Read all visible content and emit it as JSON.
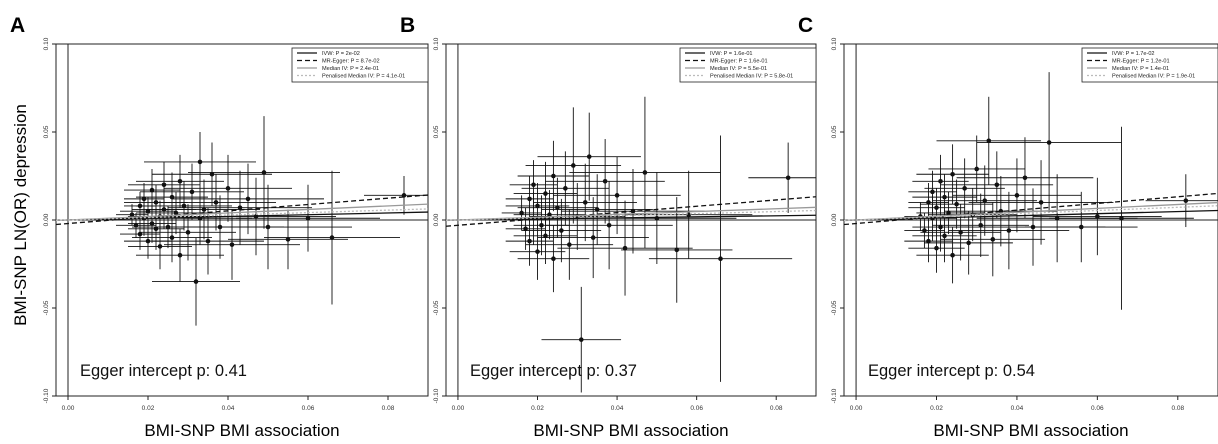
{
  "figure": {
    "ylabel": "BMI-SNP LN(OR) depression",
    "xlabel": "BMI-SNP BMI association"
  },
  "chart_data": [
    {
      "type": "scatter",
      "panel": "A",
      "xlim": [
        -0.003,
        0.09
      ],
      "ylim": [
        -0.1,
        0.1
      ],
      "xticks": [
        "0.00",
        "0.02",
        "0.04",
        "0.06",
        "0.08"
      ],
      "yticks": [
        "-0.10",
        "-0.05",
        "0.00",
        "0.05",
        "0.10"
      ],
      "legend_position": "top-right",
      "legend": [
        "IVW: P = 2e-02",
        "MR-Egger: P = 8.7e-02",
        "Median IV: P = 2.4e-01",
        "Penalised Median IV: P = 4.1e-01"
      ],
      "annotation": "Egger intercept p: 0.41",
      "lines": [
        {
          "name": "IVW: P = 2e-02",
          "style": "solid",
          "color": "#111111",
          "intercept": 0,
          "slope": 0.05
        },
        {
          "name": "MR-Egger: P = 8.7e-02",
          "style": "dashed",
          "color": "#111111",
          "intercept": -0.002,
          "slope": 0.18
        },
        {
          "name": "Median IV: P = 2.4e-01",
          "style": "solid",
          "color": "#999999",
          "intercept": 0,
          "slope": 0.1
        },
        {
          "name": "Penalised Median IV: P = 4.1e-01",
          "style": "dotted",
          "color": "#bbbbbb",
          "intercept": 0,
          "slope": 0.07
        }
      ],
      "points": [
        {
          "x": 0.016,
          "y": 0.003,
          "xe": 0.004,
          "ye": 0.006
        },
        {
          "x": 0.017,
          "y": -0.003,
          "xe": 0.005,
          "ye": 0.007
        },
        {
          "x": 0.018,
          "y": 0.008,
          "xe": 0.004,
          "ye": 0.008
        },
        {
          "x": 0.018,
          "y": -0.008,
          "xe": 0.005,
          "ye": 0.009
        },
        {
          "x": 0.019,
          "y": 0.001,
          "xe": 0.006,
          "ye": 0.01
        },
        {
          "x": 0.019,
          "y": 0.012,
          "xe": 0.005,
          "ye": 0.009
        },
        {
          "x": 0.02,
          "y": -0.012,
          "xe": 0.006,
          "ye": 0.01
        },
        {
          "x": 0.02,
          "y": 0.005,
          "xe": 0.007,
          "ye": 0.008
        },
        {
          "x": 0.021,
          "y": -0.002,
          "xe": 0.006,
          "ye": 0.011
        },
        {
          "x": 0.021,
          "y": 0.017,
          "xe": 0.007,
          "ye": 0.012
        },
        {
          "x": 0.022,
          "y": 0.01,
          "xe": 0.008,
          "ye": 0.01
        },
        {
          "x": 0.022,
          "y": -0.005,
          "xe": 0.007,
          "ye": 0.012
        },
        {
          "x": 0.023,
          "y": 0.002,
          "xe": 0.008,
          "ye": 0.009
        },
        {
          "x": 0.023,
          "y": -0.015,
          "xe": 0.008,
          "ye": 0.013
        },
        {
          "x": 0.024,
          "y": 0.02,
          "xe": 0.009,
          "ye": 0.013
        },
        {
          "x": 0.024,
          "y": 0.006,
          "xe": 0.008,
          "ye": 0.011
        },
        {
          "x": 0.025,
          "y": -0.004,
          "xe": 0.009,
          "ye": 0.012
        },
        {
          "x": 0.026,
          "y": 0.013,
          "xe": 0.009,
          "ye": 0.014
        },
        {
          "x": 0.026,
          "y": -0.01,
          "xe": 0.01,
          "ye": 0.014
        },
        {
          "x": 0.027,
          "y": 0.004,
          "xe": 0.01,
          "ye": 0.012
        },
        {
          "x": 0.028,
          "y": -0.02,
          "xe": 0.011,
          "ye": 0.015
        },
        {
          "x": 0.028,
          "y": 0.022,
          "xe": 0.011,
          "ye": 0.015
        },
        {
          "x": 0.029,
          "y": 0.008,
          "xe": 0.012,
          "ye": 0.014
        },
        {
          "x": 0.03,
          "y": -0.007,
          "xe": 0.012,
          "ye": 0.016
        },
        {
          "x": 0.031,
          "y": 0.016,
          "xe": 0.013,
          "ye": 0.016
        },
        {
          "x": 0.032,
          "y": -0.035,
          "xe": 0.011,
          "ye": 0.025
        },
        {
          "x": 0.033,
          "y": 0.033,
          "xe": 0.014,
          "ye": 0.017
        },
        {
          "x": 0.033,
          "y": 0.001,
          "xe": 0.013,
          "ye": 0.015
        },
        {
          "x": 0.034,
          "y": 0.006,
          "xe": 0.014,
          "ye": 0.017
        },
        {
          "x": 0.035,
          "y": -0.012,
          "xe": 0.014,
          "ye": 0.019
        },
        {
          "x": 0.036,
          "y": 0.026,
          "xe": 0.015,
          "ye": 0.018
        },
        {
          "x": 0.037,
          "y": 0.01,
          "xe": 0.015,
          "ye": 0.016
        },
        {
          "x": 0.038,
          "y": -0.004,
          "xe": 0.016,
          "ye": 0.018
        },
        {
          "x": 0.04,
          "y": 0.018,
          "xe": 0.016,
          "ye": 0.019
        },
        {
          "x": 0.041,
          "y": -0.014,
          "xe": 0.017,
          "ye": 0.02
        },
        {
          "x": 0.043,
          "y": 0.007,
          "xe": 0.018,
          "ye": 0.021
        },
        {
          "x": 0.045,
          "y": 0.012,
          "xe": 0.019,
          "ye": 0.02
        },
        {
          "x": 0.047,
          "y": 0.002,
          "xe": 0.02,
          "ye": 0.022
        },
        {
          "x": 0.049,
          "y": 0.027,
          "xe": 0.019,
          "ye": 0.032
        },
        {
          "x": 0.05,
          "y": -0.004,
          "xe": 0.021,
          "ye": 0.024
        },
        {
          "x": 0.055,
          "y": -0.011,
          "xe": 0.015,
          "ye": 0.017
        },
        {
          "x": 0.06,
          "y": 0.001,
          "xe": 0.018,
          "ye": 0.019
        },
        {
          "x": 0.066,
          "y": -0.01,
          "xe": 0.017,
          "ye": 0.038
        },
        {
          "x": 0.084,
          "y": 0.014,
          "xe": 0.01,
          "ye": 0.011
        }
      ]
    },
    {
      "type": "scatter",
      "panel": "B",
      "xlim": [
        -0.003,
        0.09
      ],
      "ylim": [
        -0.1,
        0.1
      ],
      "xticks": [
        "0.00",
        "0.02",
        "0.04",
        "0.06",
        "0.08"
      ],
      "yticks": [
        "-0.10",
        "-0.05",
        "0.00",
        "0.05",
        "0.10"
      ],
      "legend_position": "top-right",
      "legend": [
        "IVW: P = 1.6e-01",
        "MR-Egger: P = 1.6e-01",
        "Median IV: P = 5.5e-01",
        "Penalised Median IV: P = 5.8e-01"
      ],
      "annotation": "Egger intercept p: 0.37",
      "lines": [
        {
          "name": "IVW: P = 1.6e-01",
          "style": "solid",
          "color": "#111111",
          "intercept": 0,
          "slope": 0.03
        },
        {
          "name": "MR-Egger: P = 1.6e-01",
          "style": "dashed",
          "color": "#111111",
          "intercept": -0.003,
          "slope": 0.18
        },
        {
          "name": "Median IV: P = 5.5e-01",
          "style": "solid",
          "color": "#999999",
          "intercept": 0,
          "slope": 0.08
        },
        {
          "name": "Penalised Median IV: P = 5.8e-01",
          "style": "dotted",
          "color": "#bbbbbb",
          "intercept": 0,
          "slope": 0.06
        }
      ],
      "points": [
        {
          "x": 0.016,
          "y": 0.004,
          "xe": 0.005,
          "ye": 0.01
        },
        {
          "x": 0.017,
          "y": -0.005,
          "xe": 0.005,
          "ye": 0.012
        },
        {
          "x": 0.018,
          "y": 0.012,
          "xe": 0.006,
          "ye": 0.013
        },
        {
          "x": 0.018,
          "y": -0.012,
          "xe": 0.006,
          "ye": 0.014
        },
        {
          "x": 0.019,
          "y": 0.001,
          "xe": 0.007,
          "ye": 0.015
        },
        {
          "x": 0.019,
          "y": 0.02,
          "xe": 0.006,
          "ye": 0.014
        },
        {
          "x": 0.02,
          "y": -0.018,
          "xe": 0.007,
          "ye": 0.016
        },
        {
          "x": 0.02,
          "y": 0.008,
          "xe": 0.008,
          "ye": 0.013
        },
        {
          "x": 0.021,
          "y": -0.003,
          "xe": 0.007,
          "ye": 0.017
        },
        {
          "x": 0.022,
          "y": 0.015,
          "xe": 0.008,
          "ye": 0.018
        },
        {
          "x": 0.022,
          "y": -0.009,
          "xe": 0.008,
          "ye": 0.016
        },
        {
          "x": 0.023,
          "y": 0.003,
          "xe": 0.009,
          "ye": 0.014
        },
        {
          "x": 0.024,
          "y": -0.022,
          "xe": 0.009,
          "ye": 0.019
        },
        {
          "x": 0.024,
          "y": 0.025,
          "xe": 0.009,
          "ye": 0.02
        },
        {
          "x": 0.025,
          "y": 0.007,
          "xe": 0.01,
          "ye": 0.017
        },
        {
          "x": 0.026,
          "y": -0.006,
          "xe": 0.01,
          "ye": 0.018
        },
        {
          "x": 0.027,
          "y": 0.018,
          "xe": 0.011,
          "ye": 0.021
        },
        {
          "x": 0.028,
          "y": -0.014,
          "xe": 0.011,
          "ye": 0.02
        },
        {
          "x": 0.029,
          "y": 0.031,
          "xe": 0.012,
          "ye": 0.033
        },
        {
          "x": 0.03,
          "y": 0.002,
          "xe": 0.012,
          "ye": 0.019
        },
        {
          "x": 0.031,
          "y": -0.068,
          "xe": 0.01,
          "ye": 0.03
        },
        {
          "x": 0.032,
          "y": 0.01,
          "xe": 0.013,
          "ye": 0.022
        },
        {
          "x": 0.033,
          "y": 0.036,
          "xe": 0.013,
          "ye": 0.025
        },
        {
          "x": 0.034,
          "y": -0.01,
          "xe": 0.014,
          "ye": 0.023
        },
        {
          "x": 0.035,
          "y": 0.006,
          "xe": 0.014,
          "ye": 0.02
        },
        {
          "x": 0.037,
          "y": 0.022,
          "xe": 0.015,
          "ye": 0.024
        },
        {
          "x": 0.038,
          "y": -0.003,
          "xe": 0.016,
          "ye": 0.025
        },
        {
          "x": 0.04,
          "y": 0.014,
          "xe": 0.016,
          "ye": 0.022
        },
        {
          "x": 0.042,
          "y": -0.016,
          "xe": 0.017,
          "ye": 0.027
        },
        {
          "x": 0.044,
          "y": 0.005,
          "xe": 0.018,
          "ye": 0.024
        },
        {
          "x": 0.047,
          "y": 0.027,
          "xe": 0.019,
          "ye": 0.043
        },
        {
          "x": 0.05,
          "y": 0.001,
          "xe": 0.02,
          "ye": 0.026
        },
        {
          "x": 0.055,
          "y": -0.017,
          "xe": 0.014,
          "ye": 0.03
        },
        {
          "x": 0.058,
          "y": 0.003,
          "xe": 0.016,
          "ye": 0.025
        },
        {
          "x": 0.066,
          "y": -0.022,
          "xe": 0.018,
          "ye": 0.07
        },
        {
          "x": 0.083,
          "y": 0.024,
          "xe": 0.01,
          "ye": 0.02
        }
      ]
    },
    {
      "type": "scatter",
      "panel": "C",
      "xlim": [
        -0.003,
        0.09
      ],
      "ylim": [
        -0.1,
        0.1
      ],
      "xticks": [
        "0.00",
        "0.02",
        "0.04",
        "0.06",
        "0.08"
      ],
      "yticks": [
        "-0.10",
        "-0.05",
        "0.00",
        "0.05",
        "0.10"
      ],
      "legend_position": "top-right",
      "legend": [
        "IVW: P = 1.7e-02",
        "MR-Egger: P = 1.2e-01",
        "Median IV: P = 1.4e-01",
        "Penalised Median IV: P = 1.9e-01"
      ],
      "annotation": "Egger intercept p: 0.54",
      "lines": [
        {
          "name": "IVW: P = 1.7e-02",
          "style": "solid",
          "color": "#111111",
          "intercept": 0,
          "slope": 0.06
        },
        {
          "name": "MR-Egger: P = 1.2e-01",
          "style": "dashed",
          "color": "#111111",
          "intercept": -0.002,
          "slope": 0.19
        },
        {
          "name": "Median IV: P = 1.4e-01",
          "style": "solid",
          "color": "#999999",
          "intercept": 0,
          "slope": 0.11
        },
        {
          "name": "Penalised Median IV: P = 1.9e-01",
          "style": "dotted",
          "color": "#bbbbbb",
          "intercept": 0,
          "slope": 0.09
        }
      ],
      "points": [
        {
          "x": 0.016,
          "y": 0.002,
          "xe": 0.004,
          "ye": 0.008
        },
        {
          "x": 0.017,
          "y": -0.006,
          "xe": 0.005,
          "ye": 0.01
        },
        {
          "x": 0.018,
          "y": 0.01,
          "xe": 0.005,
          "ye": 0.011
        },
        {
          "x": 0.018,
          "y": -0.012,
          "xe": 0.006,
          "ye": 0.012
        },
        {
          "x": 0.019,
          "y": 0.016,
          "xe": 0.006,
          "ye": 0.012
        },
        {
          "x": 0.019,
          "y": 0.001,
          "xe": 0.006,
          "ye": 0.013
        },
        {
          "x": 0.02,
          "y": -0.016,
          "xe": 0.007,
          "ye": 0.014
        },
        {
          "x": 0.02,
          "y": 0.007,
          "xe": 0.007,
          "ye": 0.011
        },
        {
          "x": 0.021,
          "y": 0.022,
          "xe": 0.007,
          "ye": 0.015
        },
        {
          "x": 0.021,
          "y": -0.004,
          "xe": 0.007,
          "ye": 0.014
        },
        {
          "x": 0.022,
          "y": 0.013,
          "xe": 0.008,
          "ye": 0.013
        },
        {
          "x": 0.022,
          "y": -0.009,
          "xe": 0.008,
          "ye": 0.015
        },
        {
          "x": 0.023,
          "y": 0.004,
          "xe": 0.008,
          "ye": 0.012
        },
        {
          "x": 0.024,
          "y": -0.02,
          "xe": 0.009,
          "ye": 0.016
        },
        {
          "x": 0.024,
          "y": 0.026,
          "xe": 0.009,
          "ye": 0.017
        },
        {
          "x": 0.025,
          "y": 0.009,
          "xe": 0.009,
          "ye": 0.014
        },
        {
          "x": 0.026,
          "y": -0.007,
          "xe": 0.01,
          "ye": 0.016
        },
        {
          "x": 0.027,
          "y": 0.018,
          "xe": 0.01,
          "ye": 0.017
        },
        {
          "x": 0.028,
          "y": -0.013,
          "xe": 0.011,
          "ye": 0.018
        },
        {
          "x": 0.029,
          "y": 0.003,
          "xe": 0.011,
          "ye": 0.015
        },
        {
          "x": 0.03,
          "y": 0.029,
          "xe": 0.012,
          "ye": 0.019
        },
        {
          "x": 0.031,
          "y": -0.003,
          "xe": 0.012,
          "ye": 0.018
        },
        {
          "x": 0.032,
          "y": 0.011,
          "xe": 0.013,
          "ye": 0.02
        },
        {
          "x": 0.033,
          "y": 0.045,
          "xe": 0.013,
          "ye": 0.025
        },
        {
          "x": 0.034,
          "y": -0.011,
          "xe": 0.013,
          "ye": 0.021
        },
        {
          "x": 0.035,
          "y": 0.02,
          "xe": 0.014,
          "ye": 0.019
        },
        {
          "x": 0.036,
          "y": 0.005,
          "xe": 0.014,
          "ye": 0.02
        },
        {
          "x": 0.038,
          "y": -0.006,
          "xe": 0.015,
          "ye": 0.022
        },
        {
          "x": 0.04,
          "y": 0.014,
          "xe": 0.016,
          "ye": 0.021
        },
        {
          "x": 0.042,
          "y": 0.024,
          "xe": 0.017,
          "ye": 0.023
        },
        {
          "x": 0.044,
          "y": -0.004,
          "xe": 0.018,
          "ye": 0.022
        },
        {
          "x": 0.046,
          "y": 0.01,
          "xe": 0.018,
          "ye": 0.024
        },
        {
          "x": 0.048,
          "y": 0.044,
          "xe": 0.018,
          "ye": 0.04
        },
        {
          "x": 0.05,
          "y": 0.001,
          "xe": 0.02,
          "ye": 0.025
        },
        {
          "x": 0.056,
          "y": -0.004,
          "xe": 0.014,
          "ye": 0.02
        },
        {
          "x": 0.06,
          "y": 0.002,
          "xe": 0.016,
          "ye": 0.022
        },
        {
          "x": 0.066,
          "y": 0.001,
          "xe": 0.018,
          "ye": 0.052
        },
        {
          "x": 0.082,
          "y": 0.011,
          "xe": 0.01,
          "ye": 0.015
        }
      ]
    }
  ]
}
